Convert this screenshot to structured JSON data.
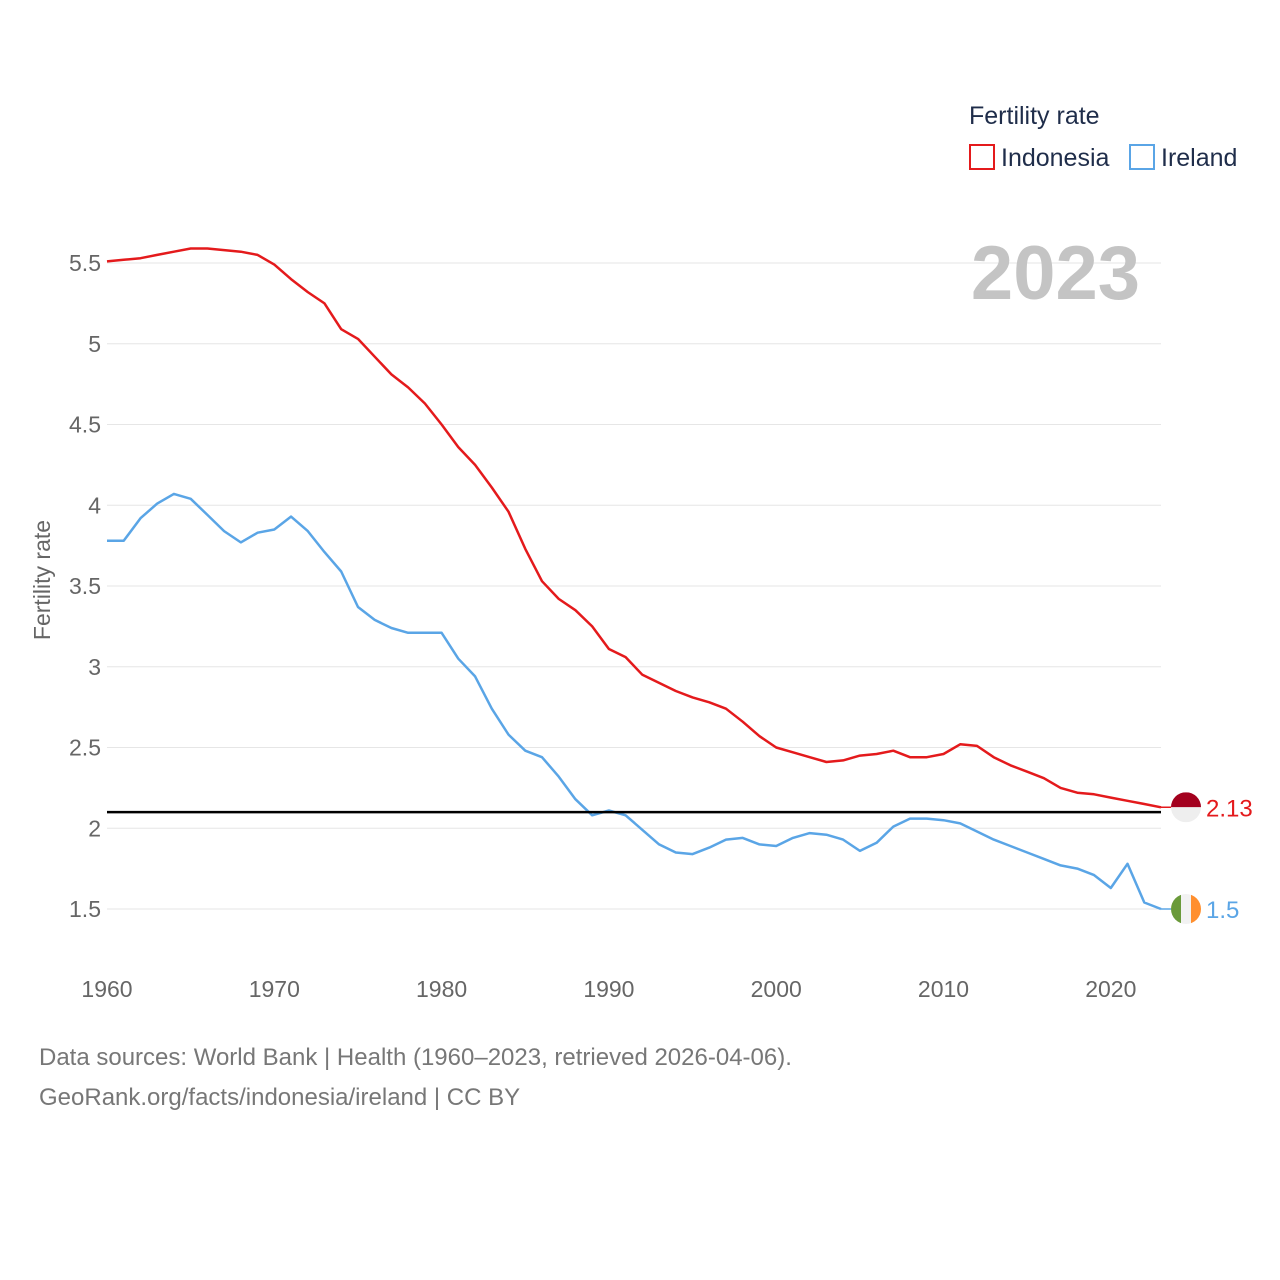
{
  "chart_data": {
    "type": "line",
    "title": "Fertility rate",
    "ylabel": "Fertility rate",
    "xlabel": "",
    "xlim": [
      1960,
      2023
    ],
    "ylim": [
      1.2,
      5.8
    ],
    "year_watermark": "2023",
    "x_ticks": [
      {
        "value": 1960,
        "label": "1960"
      },
      {
        "value": 1970,
        "label": "1970"
      },
      {
        "value": 1980,
        "label": "1980"
      },
      {
        "value": 1990,
        "label": "1990"
      },
      {
        "value": 2000,
        "label": "2000"
      },
      {
        "value": 2010,
        "label": "2010"
      },
      {
        "value": 2020,
        "label": "2020"
      }
    ],
    "y_ticks": [
      {
        "value": 1.5,
        "label": "1.5"
      },
      {
        "value": 2,
        "label": "2"
      },
      {
        "value": 2.5,
        "label": "2.5"
      },
      {
        "value": 3,
        "label": "3"
      },
      {
        "value": 3.5,
        "label": "3.5"
      },
      {
        "value": 4,
        "label": "4"
      },
      {
        "value": 4.5,
        "label": "4.5"
      },
      {
        "value": 5,
        "label": "5"
      },
      {
        "value": 5.5,
        "label": "5.5"
      }
    ],
    "reference_line": {
      "value": 2.1,
      "color": "#000000"
    },
    "x": [
      1960,
      1961,
      1962,
      1963,
      1964,
      1965,
      1966,
      1967,
      1968,
      1969,
      1970,
      1971,
      1972,
      1973,
      1974,
      1975,
      1976,
      1977,
      1978,
      1979,
      1980,
      1981,
      1982,
      1983,
      1984,
      1985,
      1986,
      1987,
      1988,
      1989,
      1990,
      1991,
      1992,
      1993,
      1994,
      1995,
      1996,
      1997,
      1998,
      1999,
      2000,
      2001,
      2002,
      2003,
      2004,
      2005,
      2006,
      2007,
      2008,
      2009,
      2010,
      2011,
      2012,
      2013,
      2014,
      2015,
      2016,
      2017,
      2018,
      2019,
      2020,
      2021,
      2022,
      2023
    ],
    "series": [
      {
        "name": "Indonesia",
        "color": "#e41a1c",
        "end_label": "2.13",
        "flag": "indonesia",
        "values": [
          5.51,
          5.52,
          5.53,
          5.55,
          5.57,
          5.59,
          5.59,
          5.58,
          5.57,
          5.55,
          5.49,
          5.4,
          5.32,
          5.25,
          5.09,
          5.03,
          4.92,
          4.81,
          4.73,
          4.63,
          4.5,
          4.36,
          4.25,
          4.11,
          3.96,
          3.73,
          3.53,
          3.42,
          3.35,
          3.25,
          3.11,
          3.06,
          2.95,
          2.9,
          2.85,
          2.81,
          2.78,
          2.74,
          2.66,
          2.57,
          2.5,
          2.47,
          2.44,
          2.41,
          2.42,
          2.45,
          2.46,
          2.48,
          2.44,
          2.44,
          2.46,
          2.52,
          2.51,
          2.44,
          2.39,
          2.35,
          2.31,
          2.25,
          2.22,
          2.21,
          2.19,
          2.17,
          2.15,
          2.13
        ]
      },
      {
        "name": "Ireland",
        "color": "#5aa5e6",
        "end_label": "1.5",
        "flag": "ireland",
        "values": [
          3.78,
          3.78,
          3.92,
          4.01,
          4.07,
          4.04,
          3.94,
          3.84,
          3.77,
          3.83,
          3.85,
          3.93,
          3.84,
          3.71,
          3.59,
          3.37,
          3.29,
          3.24,
          3.21,
          3.21,
          3.21,
          3.05,
          2.94,
          2.74,
          2.58,
          2.48,
          2.44,
          2.32,
          2.18,
          2.08,
          2.11,
          2.08,
          1.99,
          1.9,
          1.85,
          1.84,
          1.88,
          1.93,
          1.94,
          1.9,
          1.89,
          1.94,
          1.97,
          1.96,
          1.93,
          1.86,
          1.91,
          2.01,
          2.06,
          2.06,
          2.05,
          2.03,
          1.98,
          1.93,
          1.89,
          1.85,
          1.81,
          1.77,
          1.75,
          1.71,
          1.63,
          1.78,
          1.54,
          1.5
        ]
      }
    ]
  },
  "legend": {
    "title": "Fertility rate",
    "items": [
      {
        "label": "Indonesia",
        "color": "#e41a1c"
      },
      {
        "label": "Ireland",
        "color": "#5aa5e6"
      }
    ]
  },
  "footer": {
    "line1": "Data sources: World Bank | Health (1960–2023, retrieved 2026-04-06).",
    "line2": "GeoRank.org/facts/indonesia/ireland | CC BY"
  }
}
